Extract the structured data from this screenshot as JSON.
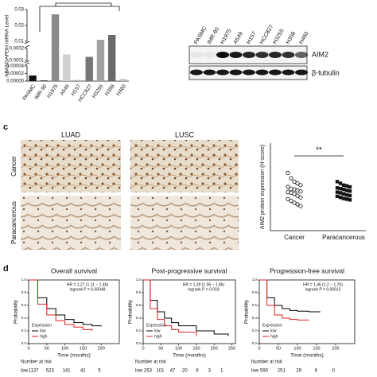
{
  "panel_a": {
    "type": "bar",
    "ylabel": "AIM2/GAPDH mRNA Level",
    "categories": [
      "PASMC",
      "IMR-90",
      "H1975",
      "A549",
      "H157",
      "HCC827",
      "H3255",
      "H358",
      "H460"
    ],
    "values": [
      1.5e-05,
      2e-06,
      0.027,
      0.00015,
      3e-06,
      0.00013,
      0.011,
      0.014,
      5e-06
    ],
    "colors": [
      "#111111",
      "#333333",
      "#8a8a8a",
      "#d0d0d0",
      "#b0b0b0",
      "#777777",
      "#a0a0a0",
      "#6a6a6a",
      "#bbbbbb"
    ],
    "y_segments": [
      {
        "ylim": [
          0,
          4e-05
        ],
        "yticks": [
          {
            "value": 0,
            "label": "0.00000"
          },
          2e-05,
          4e-05
        ]
      },
      {
        "ylim": [
          0.0001,
          0.0002
        ],
        "yticks": [
          0.0001,
          0.0002
        ]
      },
      {
        "ylim": [
          0.01,
          0.03
        ],
        "yticks": [
          0.01,
          0.02,
          0.03
        ]
      }
    ]
  },
  "panel_b": {
    "lanes": [
      "PASMC",
      "IMR-90",
      "H1975",
      "A549",
      "H157",
      "HCC827",
      "H3255",
      "H358",
      "H460"
    ],
    "bands": [
      "AIM2",
      "β-tubulin"
    ]
  },
  "panel_c": {
    "letter": "c",
    "columns": [
      "LUAD",
      "LUSC"
    ],
    "rows": [
      "Cancer",
      "Paracancerous"
    ],
    "chart": {
      "type": "scatter",
      "ylabel": "AIM2 protein expression (H-score)",
      "annotation": "**",
      "ylim": [
        0,
        250
      ],
      "categories": [
        "Cancer",
        "Paracancerous"
      ],
      "series": [
        {
          "values": [
            165,
            150,
            140,
            135,
            130,
            125,
            120,
            118,
            115,
            112,
            110,
            108,
            105,
            100,
            95,
            90,
            85,
            80,
            75,
            70
          ]
        },
        {
          "values": [
            140,
            135,
            130,
            128,
            125,
            122,
            120,
            118,
            115,
            113,
            110,
            108,
            105,
            102,
            100,
            98,
            95,
            92,
            90,
            88
          ]
        }
      ]
    }
  },
  "panel_d": {
    "letter": "d",
    "plots": [
      {
        "type": "line",
        "title": "Overall survival",
        "hr": "HR = 1.27 (1.11 − 1.46)",
        "p": "logrank P = 0.00048",
        "xlabel": "Time (months)",
        "ylabel": "Probability",
        "legend_title": "Expression",
        "xlim": [
          0,
          250
        ],
        "xticks": [
          0,
          50,
          100,
          150,
          200
        ],
        "ylim": [
          0,
          1
        ],
        "yticks": [
          {
            "value": 0,
            "label": "0.0"
          },
          0.2,
          0.4,
          0.6,
          0.8,
          {
            "value": 1,
            "label": "1.0"
          }
        ],
        "series": [
          {
            "name": "low",
            "color": "#000000",
            "x": [
              0,
              25,
              50,
              75,
              100,
              125,
              150,
              175,
              200
            ],
            "y": [
              1,
              0.72,
              0.55,
              0.45,
              0.38,
              0.33,
              0.3,
              0.28,
              0.27
            ]
          },
          {
            "name": "high",
            "color": "#e02020",
            "x": [
              0,
              25,
              50,
              75,
              100,
              125,
              150,
              175
            ],
            "y": [
              1,
              0.62,
              0.45,
              0.36,
              0.3,
              0.26,
              0.22,
              0.2
            ]
          }
        ],
        "risk_title": "Number at risk",
        "risk_rows": [
          {
            "label": "low",
            "values": [
              1137,
              523,
              141,
              42,
              5
            ]
          }
        ]
      },
      {
        "type": "line",
        "title": "Post-progressive survival",
        "hr": "HR = 1.39 (1.06 − 1.86)",
        "p": "logrank P = 0.018",
        "xlabel": "Time (months)",
        "ylabel": "Probability",
        "legend_title": "Expression",
        "xlim": [
          0,
          260
        ],
        "xticks": [
          0,
          50,
          100,
          150,
          200,
          250
        ],
        "ylim": [
          0,
          1
        ],
        "yticks": [
          {
            "value": 0,
            "label": "0.0"
          },
          0.2,
          0.4,
          0.6,
          0.8,
          {
            "value": 1,
            "label": "1.0"
          }
        ],
        "series": [
          {
            "name": "low",
            "color": "#000000",
            "x": [
              0,
              20,
              40,
              60,
              80,
              100,
              150,
              200,
              240
            ],
            "y": [
              1,
              0.68,
              0.5,
              0.4,
              0.33,
              0.28,
              0.2,
              0.15,
              0.12
            ]
          },
          {
            "name": "high",
            "color": "#e02020",
            "x": [
              0,
              20,
              40,
              60,
              80,
              100,
              150
            ],
            "y": [
              1,
              0.55,
              0.38,
              0.28,
              0.22,
              0.18,
              0.12
            ]
          }
        ],
        "risk_title": "Number at risk",
        "risk_rows": [
          {
            "label": "low",
            "values": [
              253,
              101,
              47,
              20,
              9,
              3,
              1
            ]
          }
        ]
      },
      {
        "type": "line",
        "title": "Progression-free survival",
        "hr": "HR = 1.45 (1.2 − 1.76)",
        "p": "logrank P = 0.00013",
        "xlabel": "Time (months)",
        "ylabel": "Probability",
        "legend_title": "Expression",
        "xlim": [
          0,
          250
        ],
        "xticks": [
          0,
          50,
          100,
          150,
          200
        ],
        "ylim": [
          0,
          1
        ],
        "yticks": [
          {
            "value": 0,
            "label": "0.0"
          },
          0.2,
          0.4,
          0.6,
          0.8,
          {
            "value": 1,
            "label": "1.0"
          }
        ],
        "series": [
          {
            "name": "low",
            "color": "#000000",
            "x": [
              0,
              20,
              40,
              60,
              80,
              100,
              130,
              160
            ],
            "y": [
              1,
              0.72,
              0.6,
              0.55,
              0.52,
              0.51,
              0.5,
              0.5
            ]
          },
          {
            "name": "high",
            "color": "#e02020",
            "x": [
              0,
              20,
              40,
              60,
              80,
              100,
              130
            ],
            "y": [
              1,
              0.6,
              0.45,
              0.4,
              0.38,
              0.37,
              0.37
            ]
          }
        ],
        "risk_title": "Number at risk",
        "risk_rows": [
          {
            "label": "low",
            "values": [
              590,
              251,
              29,
              6,
              0
            ]
          }
        ]
      }
    ]
  }
}
